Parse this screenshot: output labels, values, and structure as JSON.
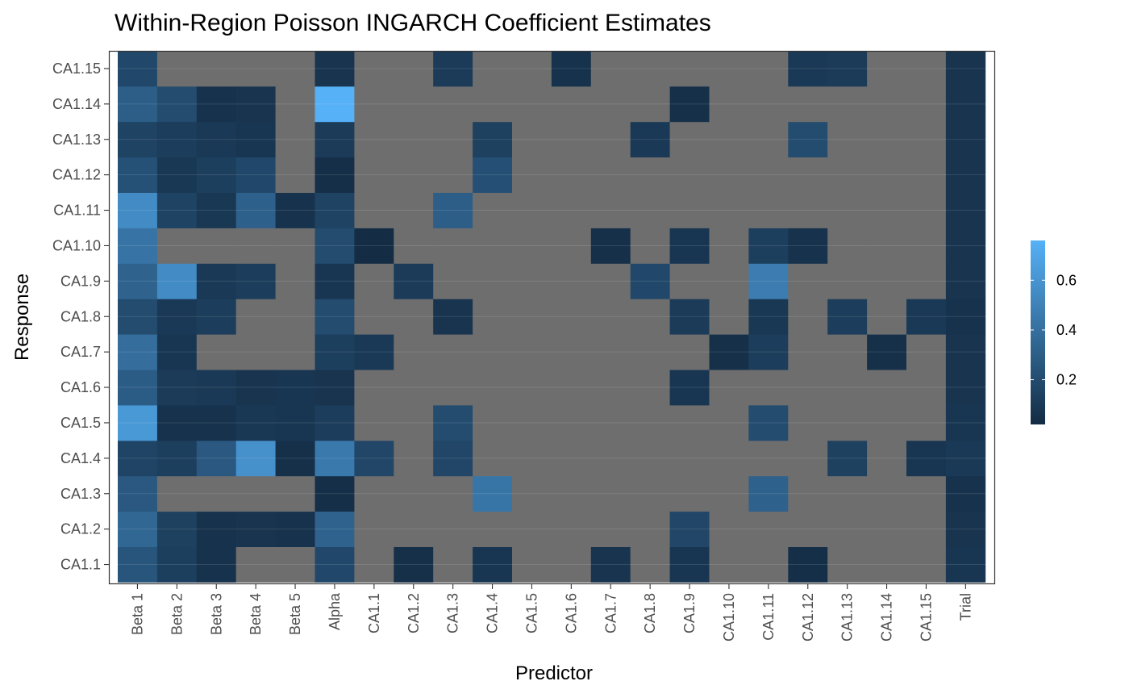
{
  "chart_data": {
    "type": "heatmap",
    "title": "Within-Region Poisson INGARCH Coefficient Estimates",
    "xlabel": "Predictor",
    "ylabel": "Response",
    "x_categories": [
      "Beta 1",
      "Beta 2",
      "Beta 3",
      "Beta 4",
      "Beta 5",
      "Alpha",
      "CA1.1",
      "CA1.2",
      "CA1.3",
      "CA1.4",
      "CA1.5",
      "CA1.6",
      "CA1.7",
      "CA1.8",
      "CA1.9",
      "CA1.10",
      "CA1.11",
      "CA1.12",
      "CA1.13",
      "CA1.14",
      "CA1.15",
      "Trial"
    ],
    "y_categories": [
      "CA1.1",
      "CA1.2",
      "CA1.3",
      "CA1.4",
      "CA1.5",
      "CA1.6",
      "CA1.7",
      "CA1.8",
      "CA1.9",
      "CA1.10",
      "CA1.11",
      "CA1.12",
      "CA1.13",
      "CA1.14",
      "CA1.15"
    ],
    "values": [
      [
        0.25,
        0.13,
        0.06,
        null,
        null,
        0.18,
        null,
        0.05,
        null,
        0.08,
        null,
        null,
        0.07,
        null,
        0.08,
        null,
        null,
        0.04,
        null,
        null,
        null,
        0.08
      ],
      [
        0.35,
        0.14,
        0.06,
        0.07,
        0.06,
        0.33,
        null,
        null,
        null,
        null,
        null,
        null,
        null,
        null,
        0.17,
        null,
        null,
        null,
        null,
        null,
        null,
        0.07
      ],
      [
        0.27,
        null,
        null,
        null,
        null,
        0.04,
        null,
        null,
        null,
        0.43,
        null,
        null,
        null,
        null,
        null,
        null,
        0.32,
        null,
        null,
        null,
        null,
        0.06
      ],
      [
        0.16,
        0.13,
        0.27,
        0.58,
        0.05,
        0.45,
        0.17,
        null,
        0.17,
        null,
        null,
        null,
        null,
        null,
        null,
        null,
        null,
        null,
        0.14,
        null,
        0.08,
        0.1
      ],
      [
        0.63,
        0.06,
        0.06,
        0.09,
        0.08,
        0.12,
        null,
        null,
        0.2,
        null,
        null,
        null,
        null,
        null,
        null,
        null,
        0.2,
        null,
        null,
        null,
        null,
        0.08
      ],
      [
        0.29,
        0.11,
        0.1,
        0.07,
        0.08,
        0.07,
        null,
        null,
        null,
        null,
        null,
        null,
        null,
        null,
        0.08,
        null,
        null,
        null,
        null,
        null,
        null,
        0.07
      ],
      [
        0.39,
        0.08,
        null,
        null,
        null,
        0.13,
        0.1,
        null,
        null,
        null,
        null,
        null,
        null,
        null,
        null,
        0.05,
        0.12,
        null,
        null,
        0.05,
        null,
        0.07
      ],
      [
        0.2,
        0.1,
        0.12,
        null,
        null,
        0.2,
        null,
        null,
        0.07,
        null,
        null,
        null,
        null,
        null,
        0.11,
        null,
        0.09,
        null,
        0.12,
        null,
        0.1,
        0.06
      ],
      [
        0.33,
        0.55,
        0.1,
        0.12,
        null,
        0.08,
        null,
        0.11,
        null,
        null,
        null,
        null,
        null,
        0.18,
        null,
        null,
        0.47,
        null,
        null,
        null,
        null,
        0.07
      ],
      [
        0.42,
        null,
        null,
        null,
        null,
        0.2,
        0.03,
        null,
        null,
        null,
        null,
        null,
        0.05,
        null,
        0.08,
        null,
        0.13,
        0.06,
        null,
        null,
        null,
        0.07
      ],
      [
        0.55,
        0.15,
        0.09,
        0.31,
        0.06,
        0.15,
        null,
        null,
        0.3,
        null,
        null,
        null,
        null,
        null,
        null,
        null,
        null,
        null,
        null,
        null,
        null,
        0.07
      ],
      [
        0.23,
        0.09,
        0.13,
        0.18,
        null,
        0.04,
        null,
        null,
        null,
        0.22,
        null,
        null,
        null,
        null,
        null,
        null,
        null,
        null,
        null,
        null,
        null,
        0.07
      ],
      [
        0.15,
        0.12,
        0.1,
        0.08,
        null,
        0.11,
        null,
        null,
        null,
        0.14,
        null,
        null,
        null,
        0.1,
        null,
        null,
        null,
        0.2,
        null,
        null,
        null,
        0.07
      ],
      [
        0.3,
        0.2,
        0.06,
        0.07,
        null,
        0.76,
        null,
        null,
        null,
        null,
        null,
        null,
        null,
        null,
        0.05,
        null,
        null,
        null,
        null,
        null,
        null,
        0.07
      ],
      [
        0.18,
        null,
        null,
        null,
        null,
        0.07,
        null,
        null,
        0.11,
        null,
        null,
        0.06,
        null,
        null,
        null,
        null,
        null,
        0.1,
        0.11,
        null,
        null,
        0.07
      ]
    ],
    "missing_color": "#6e6e6e",
    "color_scale": {
      "low": "#132b43",
      "high": "#56b1f7",
      "range": [
        0.02,
        0.76
      ]
    },
    "legend": {
      "ticks": [
        "0.2",
        "0.4",
        "0.6"
      ],
      "tick_values": [
        0.2,
        0.4,
        0.6
      ],
      "placement": "right"
    }
  }
}
